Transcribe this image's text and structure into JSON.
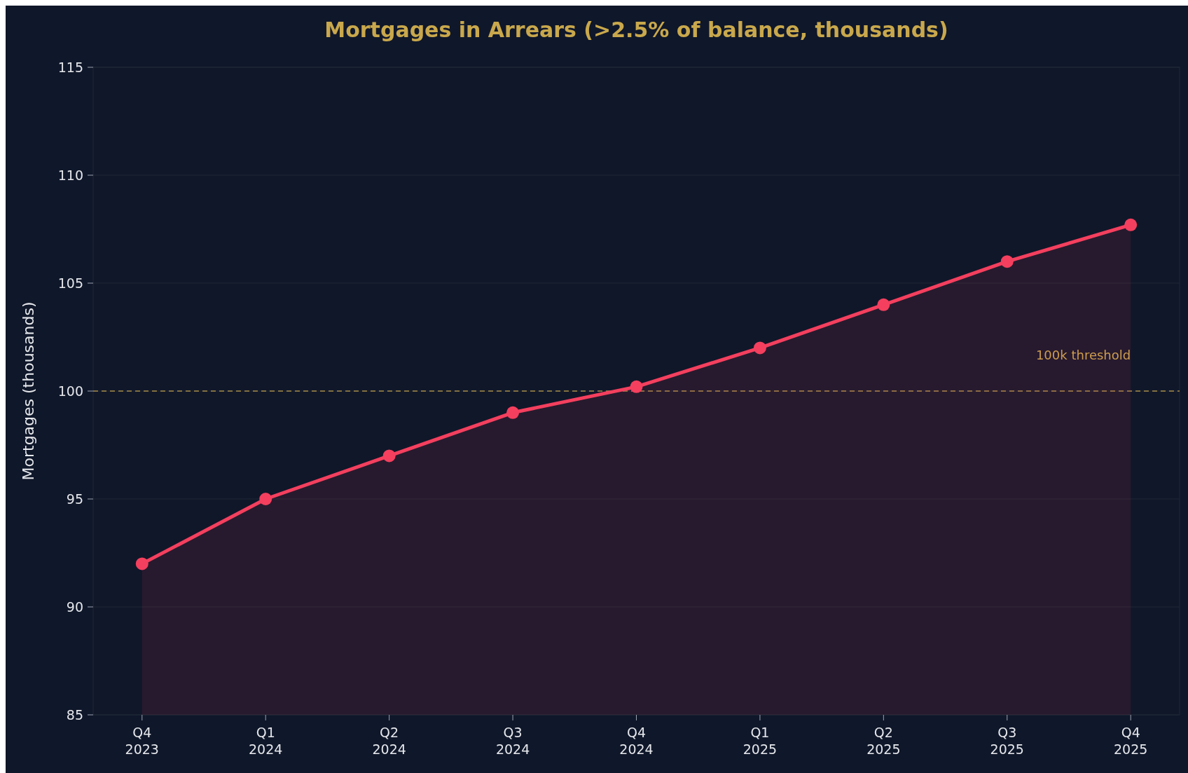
{
  "chart_data": {
    "type": "area",
    "title": "Mortgages in Arrears (>2.5% of balance, thousands)",
    "ylabel": "Mortgages (thousands)",
    "categories": [
      "Q4\n2023",
      "Q1\n2024",
      "Q2\n2024",
      "Q3\n2024",
      "Q4\n2024",
      "Q1\n2025",
      "Q2\n2025",
      "Q3\n2025",
      "Q4\n2025"
    ],
    "series": [
      {
        "color": "#f43f5e",
        "values": [
          92,
          95,
          97,
          99,
          100.2,
          102,
          104,
          106,
          107.7
        ]
      }
    ],
    "ylim": [
      85,
      115
    ],
    "yticks": [
      85,
      90,
      95,
      100,
      105,
      110,
      115
    ],
    "grid": "y",
    "marker": "circle",
    "line_style": "solid",
    "ref_lines": [
      {
        "axis": "y",
        "value": 100,
        "label": "100k threshold",
        "color": "#c9a84c",
        "line_style": "dashed"
      }
    ]
  }
}
